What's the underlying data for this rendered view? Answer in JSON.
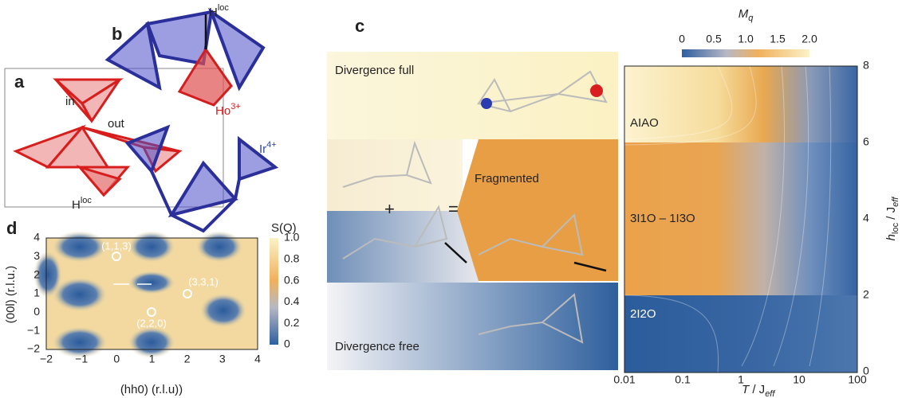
{
  "panel_a": {
    "label": "a",
    "inside": "in",
    "outside": "out",
    "field": {
      "base": "H",
      "sup": "loc"
    }
  },
  "panel_b": {
    "label": "b",
    "field": {
      "base": "H",
      "sup": "loc"
    },
    "ho": {
      "base": "Ho",
      "sup": "3+"
    },
    "ir": {
      "base": "Ir",
      "sup": "4+"
    }
  },
  "panel_c": {
    "label": "c",
    "states": [
      "Divergence full",
      "Fragmented",
      "Divergence free"
    ],
    "plus": "+",
    "equals": "=",
    "colorbar": {
      "title": {
        "base": "M",
        "sub": "q"
      },
      "ticks": [
        "0",
        "0.5",
        "1.0",
        "1.5",
        "2.0"
      ]
    },
    "phases": [
      "AIAO",
      "3I1O – 1I3O",
      "2I2O"
    ],
    "x_ticks": [
      "0.01",
      "0.1",
      "1",
      "10",
      "100"
    ],
    "y_ticks": [
      "0",
      "2",
      "4",
      "6",
      "8"
    ],
    "x_label": {
      "base": "T",
      "mid": " / J",
      "sub": "eff"
    },
    "y_label": {
      "base": "h",
      "sub1": "loc",
      "mid": " / J",
      "sub2": "eff"
    }
  },
  "panel_d": {
    "label": "d",
    "x_ticks": [
      "−2",
      "−1",
      "0",
      "1",
      "2",
      "3",
      "4"
    ],
    "y_ticks": [
      "−2",
      "−1",
      "0",
      "1",
      "2",
      "3",
      "4"
    ],
    "x_label": "(hh0) (r.l.u))",
    "y_label": "(00l) (r.l.u.)",
    "points": [
      "(1,1,3)",
      "(3,3,1)",
      "(2,2,0)"
    ],
    "colorbar": {
      "title": "S(Q)",
      "ticks": [
        "0",
        "0.2",
        "0.4",
        "0.6",
        "0.8",
        "1.0"
      ]
    }
  }
}
